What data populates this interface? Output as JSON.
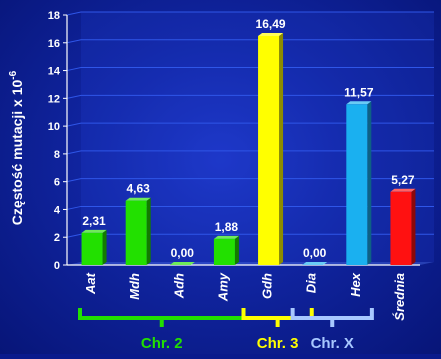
{
  "chart_data": {
    "type": "bar",
    "ylabel": "Częstość mutacji x 10",
    "ylabel_exponent": "-6",
    "ylim": [
      0,
      18
    ],
    "yticks": [
      0,
      2,
      4,
      6,
      8,
      10,
      12,
      14,
      16,
      18
    ],
    "grid": true,
    "categories": [
      "Aat",
      "Mdh",
      "Adh",
      "Amy",
      "Gdh",
      "Dia",
      "Hex",
      "Średnia"
    ],
    "values": [
      2.31,
      4.63,
      0.0,
      1.88,
      16.49,
      0.0,
      11.57,
      5.27
    ],
    "value_labels": [
      "2,31",
      "4,63",
      "0,00",
      "1,88",
      "16,49",
      "0,00",
      "11,57",
      "5,27"
    ],
    "bar_colors": [
      "#22e000",
      "#22e000",
      "#22e000",
      "#22e000",
      "#ffff00",
      "#1ab0f0",
      "#1ab0f0",
      "#ff1111"
    ],
    "groups": [
      {
        "label": "Chr. 2",
        "color": "#22e000",
        "first": 0,
        "last": 3
      },
      {
        "label": "Chr. 3",
        "color": "#ffff00",
        "first": 4,
        "last": 5
      },
      {
        "label": "Chr. X",
        "color": "#a8c8ff",
        "first": 5,
        "last": 6
      }
    ]
  }
}
